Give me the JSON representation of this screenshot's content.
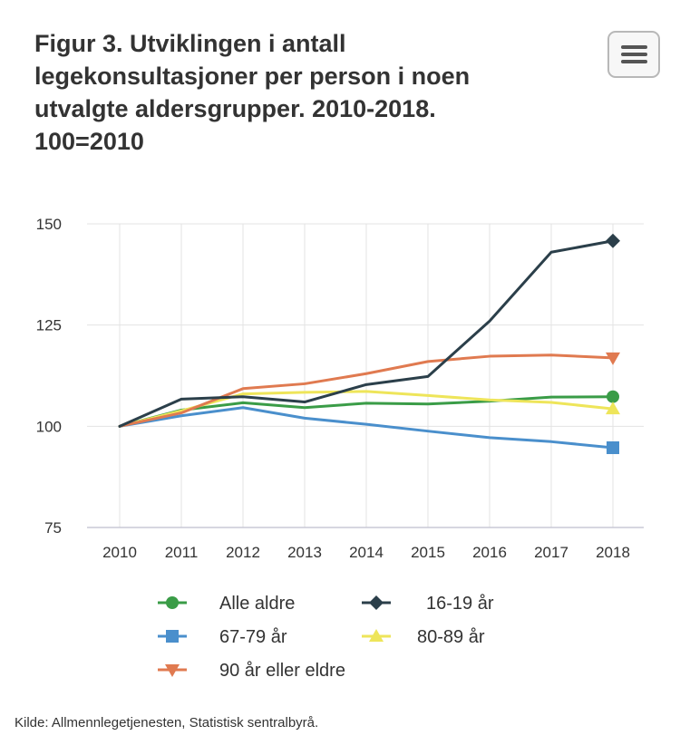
{
  "title": "Figur 3. Utviklingen i antall legekonsultasjoner per person i noen utvalgte aldersgrupper. 2010-2018. 100=2010",
  "menu_icon": "hamburger-menu-icon",
  "source": "Kilde: Allmennlegetjenesten, Statistisk sentralbyrå.",
  "chart_data": {
    "type": "line",
    "title": "Figur 3. Utviklingen i antall legekonsultasjoner per person i noen utvalgte aldersgrupper. 2010-2018. 100=2010",
    "x": [
      "2010",
      "2011",
      "2012",
      "2013",
      "2014",
      "2015",
      "2016",
      "2017",
      "2018"
    ],
    "ylim": [
      75,
      150
    ],
    "yticks": [
      75,
      100,
      125,
      150
    ],
    "grid": true,
    "legend_position": "bottom",
    "series": [
      {
        "name": "Alle aldre",
        "color": "#3a9c47",
        "marker": "circle",
        "values": [
          100,
          104,
          105.8,
          104.6,
          105.7,
          105.5,
          106.2,
          107.2,
          107.3
        ]
      },
      {
        "name": "16-19 år",
        "color": "#2b3f4a",
        "marker": "diamond",
        "values": [
          100,
          106.7,
          107.3,
          106,
          110.3,
          112.3,
          126,
          143,
          145.8
        ]
      },
      {
        "name": "67-79 år",
        "color": "#4a8fcc",
        "marker": "square",
        "values": [
          100,
          102.6,
          104.6,
          102,
          100.5,
          98.8,
          97.2,
          96.2,
          94.7
        ]
      },
      {
        "name": "80-89 år",
        "color": "#eee55a",
        "marker": "triangle-up",
        "values": [
          100,
          103.8,
          108,
          108.4,
          108.6,
          107.6,
          106.5,
          105.9,
          104.3
        ]
      },
      {
        "name": "90 år eller eldre",
        "color": "#e07a50",
        "marker": "triangle-down",
        "values": [
          100,
          103.3,
          109.3,
          110.5,
          113,
          116,
          117.3,
          117.6,
          116.9
        ]
      }
    ]
  }
}
